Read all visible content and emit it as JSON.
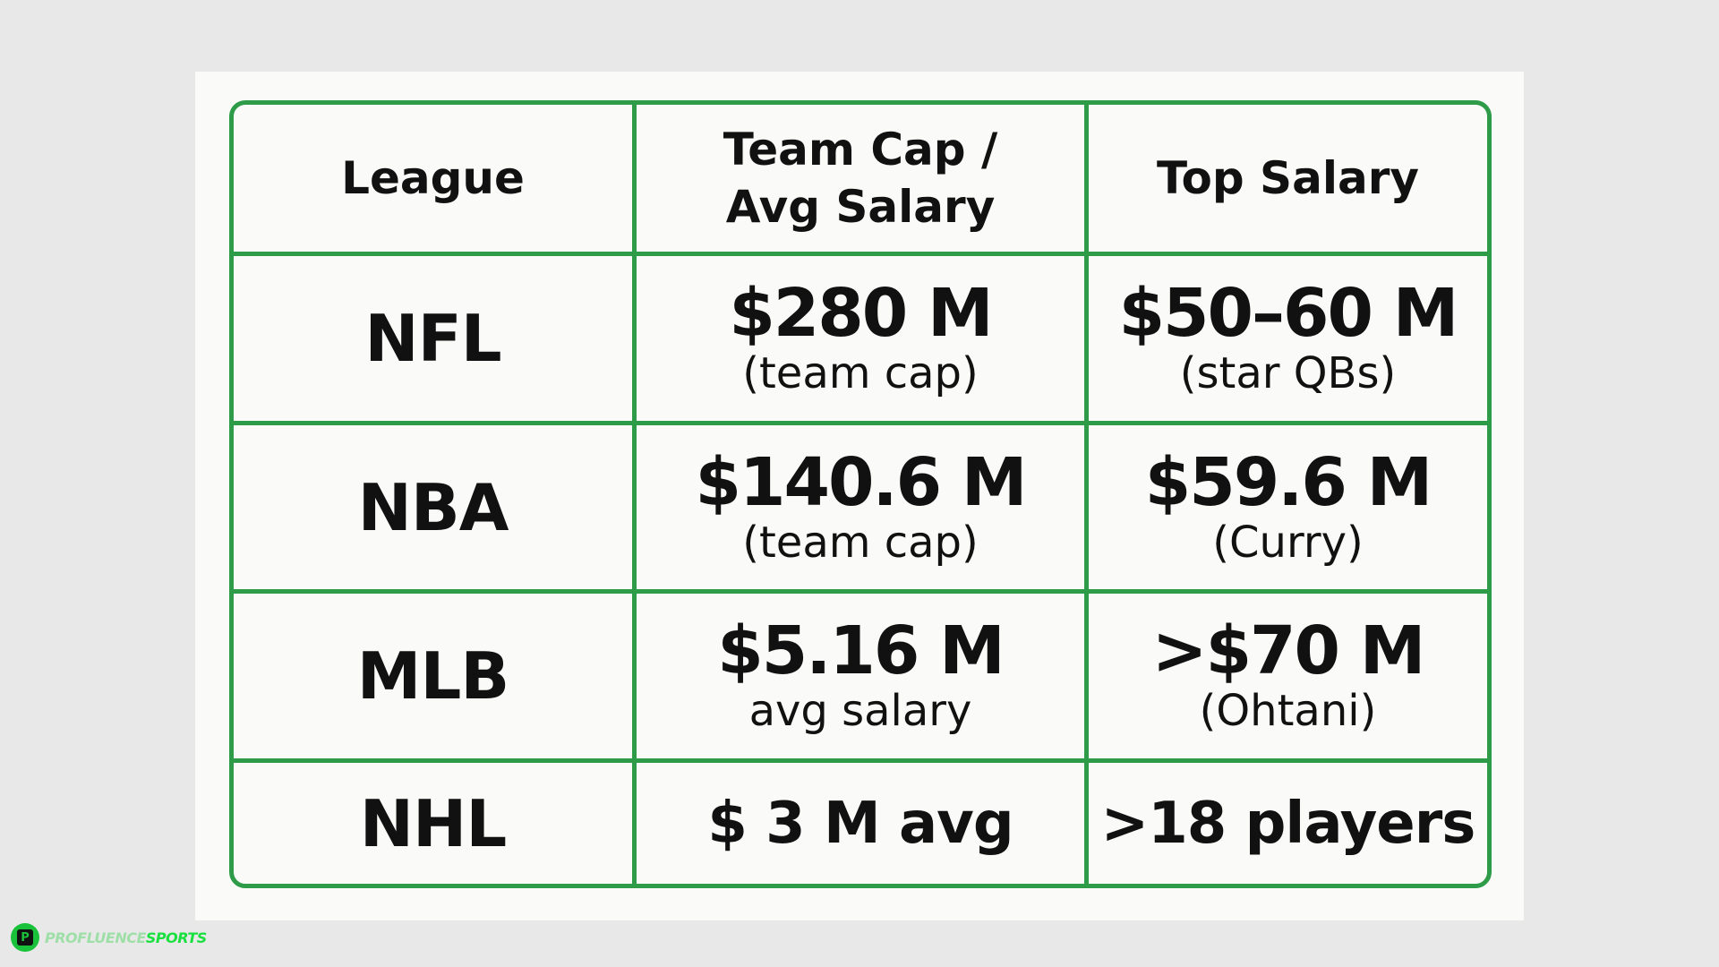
{
  "table": {
    "headers": [
      "League",
      "Team Cap /",
      "Avg Salary",
      "Top Salary"
    ],
    "rows": [
      {
        "league": "NFL",
        "cap_amount": "$280 M",
        "cap_note": "(team cap)",
        "top_amount": "$50–60 M",
        "top_note": "(star QBs)"
      },
      {
        "league": "NBA",
        "cap_amount": "$140.6 M",
        "cap_note": "(team cap)",
        "top_amount": "$59.6 M",
        "top_note": "(Curry)"
      },
      {
        "league": "MLB",
        "cap_amount": "$5.16 M",
        "cap_note": "avg salary",
        "top_amount": ">$70 M",
        "top_note": "(Ohtani)"
      },
      {
        "league": "NHL",
        "cap_amount": "$ 3 M avg",
        "top_amount": ">18 players"
      }
    ]
  },
  "brand": {
    "badge": "P",
    "part1": "PROFLUENCE",
    "part2": "SPORTS"
  },
  "colors": {
    "border": "#2e9b48",
    "background": "#e8e8e8",
    "card": "#fafaf8",
    "brand_green": "#19c23a"
  }
}
